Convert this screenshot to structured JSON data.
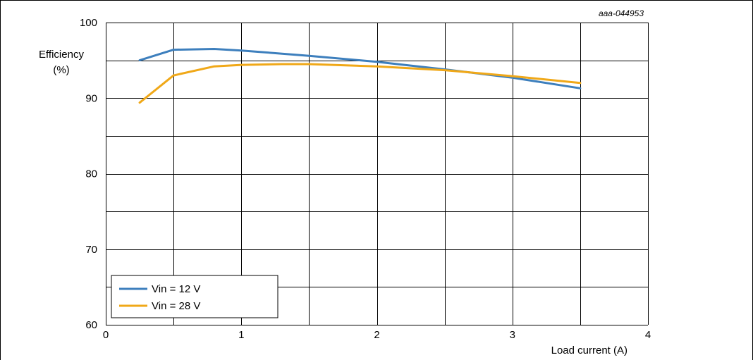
{
  "figure_id": "aaa-044953",
  "chart_data": {
    "type": "line",
    "ylabel_line1": "Efficiency",
    "ylabel_line2": "(%)",
    "xlabel": "Load current (A)",
    "xlim": [
      0,
      4
    ],
    "ylim": [
      60,
      100
    ],
    "x_ticks": [
      0,
      1,
      2,
      3,
      4
    ],
    "y_ticks": [
      60,
      70,
      80,
      90,
      100
    ],
    "x_minor_grid_step": 0.5,
    "y_minor_grid_step": 5,
    "grid": true,
    "legend_position": "bottom-left",
    "series": [
      {
        "name": "Vin = 12 V",
        "color": "#3d7fbd",
        "x": [
          0.25,
          0.5,
          0.8,
          1.0,
          1.5,
          2.0,
          2.5,
          3.0,
          3.5
        ],
        "y": [
          95.0,
          96.4,
          96.5,
          96.3,
          95.6,
          94.8,
          93.8,
          92.7,
          91.3
        ]
      },
      {
        "name": "Vin = 28 V",
        "color": "#f0a818",
        "x": [
          0.25,
          0.5,
          0.8,
          1.0,
          1.3,
          1.5,
          2.0,
          2.5,
          3.0,
          3.5
        ],
        "y": [
          89.4,
          93.0,
          94.2,
          94.4,
          94.5,
          94.5,
          94.2,
          93.7,
          92.9,
          92.0
        ]
      }
    ]
  }
}
